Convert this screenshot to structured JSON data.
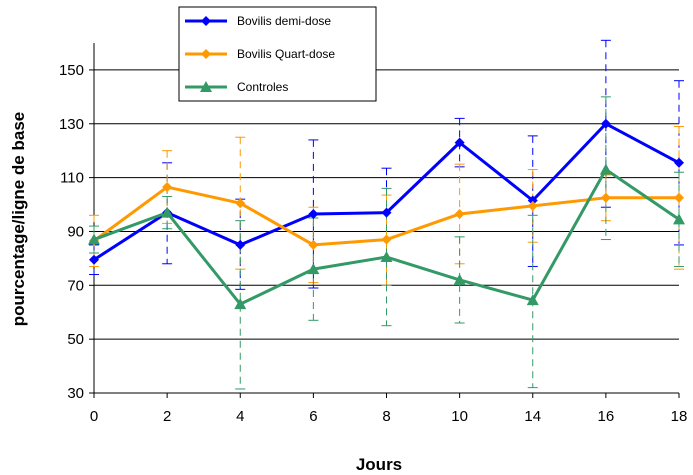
{
  "chart_data": {
    "type": "line",
    "xlabel": "Jours",
    "ylabel": "pourcentage/ligne de base",
    "categories": [
      "0",
      "2",
      "4",
      "6",
      "8",
      "10",
      "14",
      "16",
      "18"
    ],
    "ylim": [
      30,
      160
    ],
    "yticks": [
      30,
      50,
      70,
      90,
      110,
      130,
      150
    ],
    "grid": "horizontal",
    "legend_position": "top-center",
    "series": [
      {
        "name": "Bovilis demi-dose",
        "color": "#0000ff",
        "marker": "diamond",
        "values": [
          79.5,
          97,
          85,
          96.5,
          97,
          123,
          101.5,
          130,
          115.5
        ],
        "err_high": [
          85,
          115.5,
          102,
          124,
          113.5,
          132,
          125.5,
          161,
          146
        ],
        "err_low": [
          74,
          78,
          68.5,
          69,
          80,
          114,
          77,
          99,
          85
        ]
      },
      {
        "name": "Bovilis Quart-dose",
        "color": "#ff9900",
        "marker": "diamond",
        "values": [
          86.5,
          106.5,
          100.5,
          85,
          87,
          96.5,
          99.5,
          102.5,
          102.5
        ],
        "err_high": [
          96,
          120,
          125,
          99,
          103.5,
          115,
          113,
          111,
          129
        ],
        "err_low": [
          77,
          93,
          76,
          71,
          70,
          78,
          86,
          94,
          76
        ]
      },
      {
        "name": "Controles",
        "color": "#339966",
        "marker": "triangle",
        "values": [
          87,
          97,
          63,
          76,
          80.5,
          72,
          64.5,
          113,
          94.5
        ],
        "err_high": [
          92,
          103,
          94,
          95,
          106,
          88,
          96,
          140,
          112
        ],
        "err_low": [
          82,
          91,
          31.5,
          57,
          55,
          56,
          32,
          87,
          77
        ]
      }
    ]
  }
}
